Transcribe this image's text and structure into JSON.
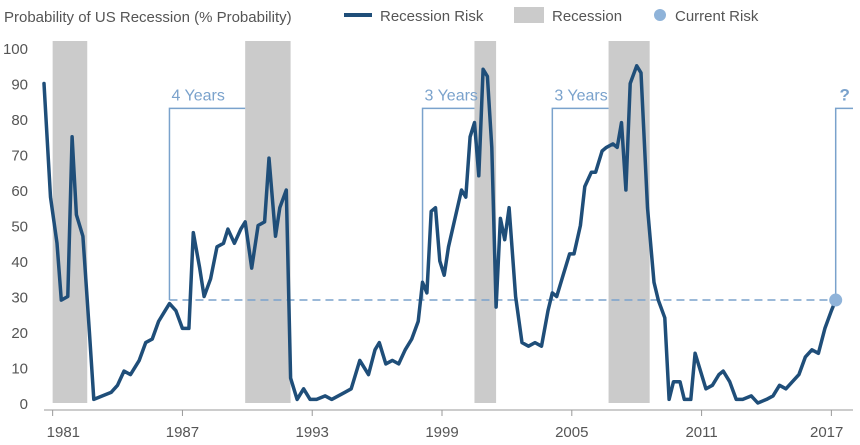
{
  "chart_data": {
    "type": "line",
    "title": "Probability of US Recession (% Probability)",
    "legend": {
      "placement": "top",
      "items": [
        {
          "label": "Recession Risk",
          "kind": "line",
          "color": "#1f4e79"
        },
        {
          "label": "Recession",
          "kind": "band",
          "color": "#cbcbcb"
        },
        {
          "label": "Current Risk",
          "kind": "dot",
          "color": "#8fb3d9"
        }
      ]
    },
    "x_range": [
      1980.6,
      2018.0
    ],
    "ylim": [
      0,
      100
    ],
    "y_ticks": [
      "0",
      "10",
      "20",
      "30",
      "40",
      "50",
      "60",
      "70",
      "80",
      "90",
      "100"
    ],
    "x_ticks": [
      {
        "value": 1981,
        "label": "1981"
      },
      {
        "value": 1987,
        "label": "1987"
      },
      {
        "value": 1993,
        "label": "1993"
      },
      {
        "value": 1999,
        "label": "1999"
      },
      {
        "value": 2005,
        "label": "2005"
      },
      {
        "value": 2011,
        "label": "2011"
      },
      {
        "value": 2017,
        "label": "2017"
      }
    ],
    "recessions": [
      [
        1981.0,
        1982.6
      ],
      [
        1989.9,
        1992.0
      ],
      [
        2000.5,
        2001.5
      ],
      [
        2006.7,
        2008.6
      ]
    ],
    "series": [
      {
        "color": "#1f4e79",
        "points": [
          [
            1980.6,
            90
          ],
          [
            1980.9,
            58
          ],
          [
            1981.2,
            45
          ],
          [
            1981.4,
            29
          ],
          [
            1981.7,
            30
          ],
          [
            1981.9,
            75
          ],
          [
            1982.1,
            53
          ],
          [
            1982.4,
            47
          ],
          [
            1982.7,
            20
          ],
          [
            1982.9,
            1
          ],
          [
            1983.3,
            2
          ],
          [
            1983.7,
            3
          ],
          [
            1984.0,
            5
          ],
          [
            1984.3,
            9
          ],
          [
            1984.6,
            8
          ],
          [
            1985.0,
            12
          ],
          [
            1985.3,
            17
          ],
          [
            1985.6,
            18
          ],
          [
            1985.9,
            23
          ],
          [
            1986.2,
            26
          ],
          [
            1986.4,
            28
          ],
          [
            1986.7,
            26
          ],
          [
            1987.0,
            21
          ],
          [
            1987.3,
            21
          ],
          [
            1987.5,
            48
          ],
          [
            1987.8,
            38
          ],
          [
            1988.0,
            30
          ],
          [
            1988.3,
            35
          ],
          [
            1988.6,
            44
          ],
          [
            1988.9,
            45
          ],
          [
            1989.1,
            49
          ],
          [
            1989.4,
            45
          ],
          [
            1989.7,
            49
          ],
          [
            1989.9,
            51
          ],
          [
            1990.2,
            38
          ],
          [
            1990.5,
            50
          ],
          [
            1990.8,
            51
          ],
          [
            1991.0,
            69
          ],
          [
            1991.3,
            47
          ],
          [
            1991.5,
            55
          ],
          [
            1991.8,
            60
          ],
          [
            1992.0,
            7
          ],
          [
            1992.3,
            1
          ],
          [
            1992.6,
            4
          ],
          [
            1992.9,
            1
          ],
          [
            1993.2,
            1
          ],
          [
            1993.6,
            2
          ],
          [
            1993.9,
            1
          ],
          [
            1994.2,
            2
          ],
          [
            1994.5,
            3
          ],
          [
            1994.8,
            4
          ],
          [
            1995.2,
            12
          ],
          [
            1995.6,
            8
          ],
          [
            1995.9,
            15
          ],
          [
            1996.1,
            17
          ],
          [
            1996.4,
            11
          ],
          [
            1996.7,
            12
          ],
          [
            1997.0,
            11
          ],
          [
            1997.3,
            15
          ],
          [
            1997.6,
            18
          ],
          [
            1997.9,
            23
          ],
          [
            1998.1,
            34
          ],
          [
            1998.3,
            31
          ],
          [
            1998.5,
            54
          ],
          [
            1998.7,
            55
          ],
          [
            1998.9,
            40
          ],
          [
            1999.1,
            36
          ],
          [
            1999.3,
            44
          ],
          [
            1999.6,
            52
          ],
          [
            1999.9,
            60
          ],
          [
            2000.1,
            58
          ],
          [
            2000.3,
            75
          ],
          [
            2000.5,
            79
          ],
          [
            2000.7,
            64
          ],
          [
            2000.9,
            94
          ],
          [
            2001.1,
            92
          ],
          [
            2001.3,
            72
          ],
          [
            2001.5,
            27
          ],
          [
            2001.7,
            52
          ],
          [
            2001.9,
            46
          ],
          [
            2002.1,
            55
          ],
          [
            2002.4,
            30
          ],
          [
            2002.7,
            17
          ],
          [
            2003.0,
            16
          ],
          [
            2003.3,
            17
          ],
          [
            2003.6,
            16
          ],
          [
            2003.9,
            26
          ],
          [
            2004.1,
            31
          ],
          [
            2004.3,
            30
          ],
          [
            2004.6,
            36
          ],
          [
            2004.9,
            42
          ],
          [
            2005.1,
            42
          ],
          [
            2005.4,
            50
          ],
          [
            2005.6,
            61
          ],
          [
            2005.9,
            65
          ],
          [
            2006.1,
            65
          ],
          [
            2006.4,
            71
          ],
          [
            2006.6,
            72
          ],
          [
            2006.9,
            73
          ],
          [
            2007.1,
            72
          ],
          [
            2007.3,
            79
          ],
          [
            2007.5,
            60
          ],
          [
            2007.7,
            90
          ],
          [
            2008.0,
            95
          ],
          [
            2008.2,
            93
          ],
          [
            2008.5,
            55
          ],
          [
            2008.8,
            34
          ],
          [
            2009.0,
            29
          ],
          [
            2009.3,
            24
          ],
          [
            2009.5,
            1
          ],
          [
            2009.7,
            6
          ],
          [
            2010.0,
            6
          ],
          [
            2010.2,
            1
          ],
          [
            2010.5,
            1
          ],
          [
            2010.7,
            14
          ],
          [
            2011.0,
            8
          ],
          [
            2011.2,
            4
          ],
          [
            2011.5,
            5
          ],
          [
            2011.8,
            8
          ],
          [
            2012.0,
            9
          ],
          [
            2012.3,
            6
          ],
          [
            2012.6,
            1
          ],
          [
            2012.9,
            1
          ],
          [
            2013.3,
            2
          ],
          [
            2013.6,
            0
          ],
          [
            2014.0,
            1
          ],
          [
            2014.3,
            2
          ],
          [
            2014.6,
            5
          ],
          [
            2014.9,
            4
          ],
          [
            2015.2,
            6
          ],
          [
            2015.5,
            8
          ],
          [
            2015.8,
            13
          ],
          [
            2016.1,
            15
          ],
          [
            2016.4,
            14
          ],
          [
            2016.7,
            21
          ],
          [
            2017.0,
            26
          ],
          [
            2017.2,
            29
          ]
        ]
      }
    ],
    "current_risk": {
      "x": 2017.2,
      "y": 29
    },
    "reference_line": {
      "y": 29,
      "x_start": 1986.4,
      "x_end": 2017.2
    },
    "annotations": [
      {
        "label": "4 Years",
        "x_start": 1986.4,
        "x_end": 1989.9,
        "y": 83
      },
      {
        "label": "3 Years",
        "x_start": 1998.1,
        "x_end": 2000.5,
        "y": 83
      },
      {
        "label": "3 Years",
        "x_start": 2004.1,
        "x_end": 2006.7,
        "y": 83
      },
      {
        "label": "?",
        "x_start": 2017.2,
        "x_end": 2018.0,
        "y": 83
      }
    ]
  }
}
